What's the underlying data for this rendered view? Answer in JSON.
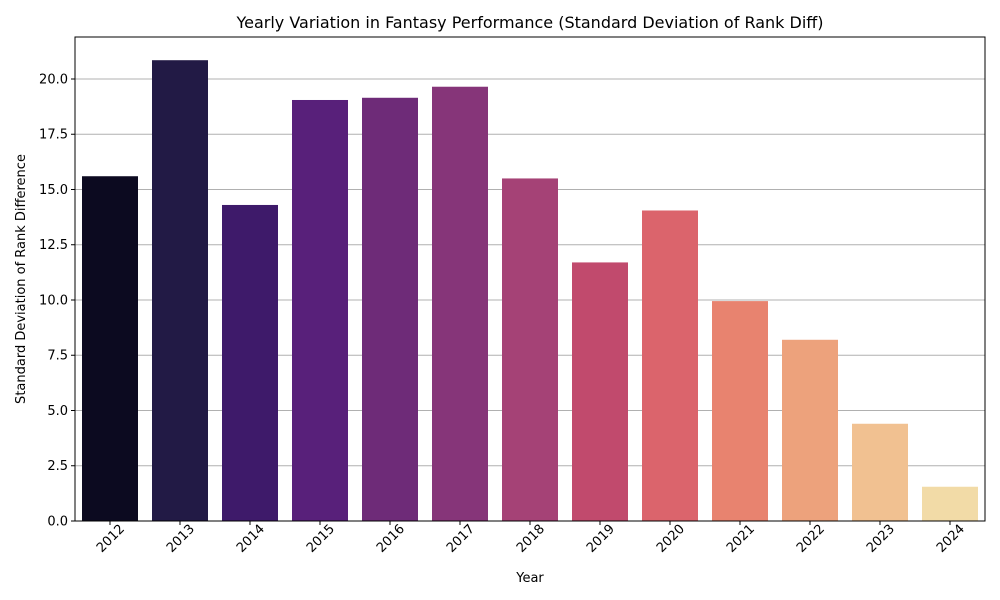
{
  "chart_data": {
    "type": "bar",
    "title": "Yearly Variation in Fantasy Performance (Standard Deviation of Rank Diff)",
    "xlabel": "Year",
    "ylabel": "Standard Deviation of Rank Difference",
    "categories": [
      "2012",
      "2013",
      "2014",
      "2015",
      "2016",
      "2017",
      "2018",
      "2019",
      "2020",
      "2021",
      "2022",
      "2023",
      "2024"
    ],
    "values": [
      15.6,
      20.85,
      14.3,
      19.05,
      19.15,
      19.65,
      15.5,
      11.7,
      14.05,
      9.95,
      8.2,
      4.4,
      1.55
    ],
    "ylim": [
      0,
      21.9
    ],
    "yticks": [
      "0.0",
      "2.5",
      "5.0",
      "7.5",
      "10.0",
      "12.5",
      "15.0",
      "17.5",
      "20.0"
    ],
    "grid": "y",
    "legend": "none",
    "colors": [
      "#0c0a20",
      "#221a45",
      "#3e1a6a",
      "#58207a",
      "#6e2b78",
      "#863579",
      "#a54276",
      "#c14a6d",
      "#db646c",
      "#e8836f",
      "#eda27c",
      "#f1c191",
      "#f2dba7"
    ]
  }
}
